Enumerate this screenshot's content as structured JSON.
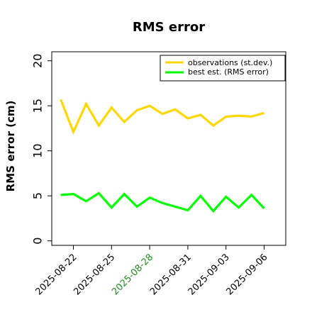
{
  "chart_data": {
    "type": "line",
    "title": "RMS error",
    "xlabel": "",
    "ylabel": "RMS error (cm)",
    "ylim": [
      -0.5,
      21
    ],
    "yticks": [
      0,
      5,
      10,
      15,
      20
    ],
    "xticks": [
      "2025-08-22",
      "2025-08-25",
      "2025-08-28",
      "2025-08-31",
      "2025-09-03",
      "2025-09-06"
    ],
    "highlight_tick": "2025-08-28",
    "highlight_color": "#228b22",
    "x": [
      "2025-08-21",
      "2025-08-22",
      "2025-08-23",
      "2025-08-24",
      "2025-08-25",
      "2025-08-26",
      "2025-08-27",
      "2025-08-28",
      "2025-08-29",
      "2025-08-30",
      "2025-08-31",
      "2025-09-01",
      "2025-09-02",
      "2025-09-03",
      "2025-09-04",
      "2025-09-05",
      "2025-09-06"
    ],
    "series": [
      {
        "name": "observations (st.dev.)",
        "color": "#ffd700",
        "values": [
          15.7,
          12.1,
          15.2,
          12.8,
          14.8,
          13.2,
          14.5,
          15.0,
          14.1,
          14.6,
          13.6,
          14.0,
          12.8,
          13.8,
          13.9,
          13.8,
          14.2
        ]
      },
      {
        "name": "best est. (RMS error)",
        "color": "#00ff00",
        "values": [
          5.1,
          5.2,
          4.4,
          5.3,
          3.7,
          5.2,
          3.8,
          4.8,
          4.2,
          3.8,
          3.4,
          5.0,
          3.3,
          4.9,
          3.7,
          5.1,
          3.6
        ]
      }
    ],
    "grid": false,
    "legend": "top-right"
  }
}
